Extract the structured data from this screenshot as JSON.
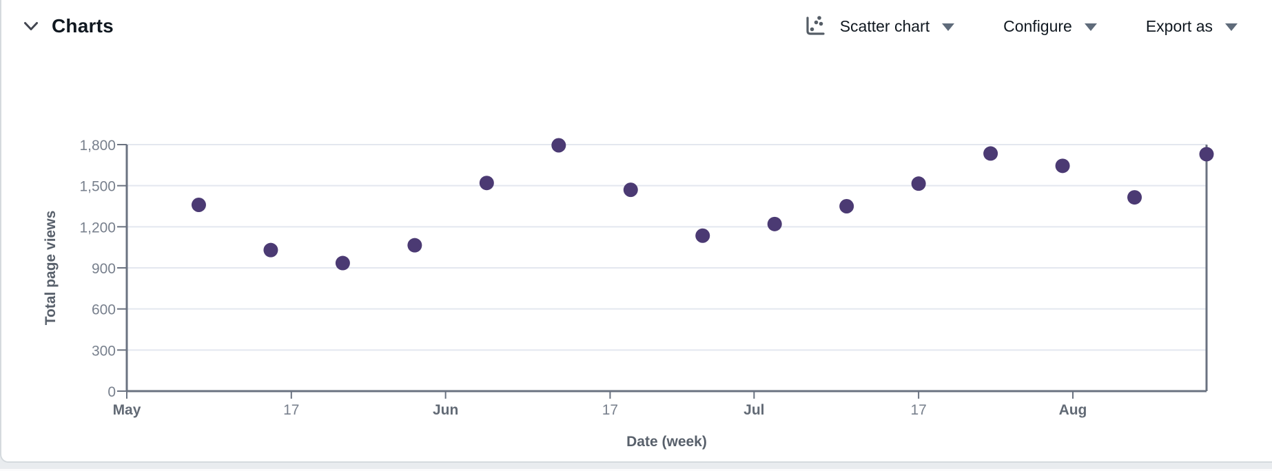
{
  "panel": {
    "title": "Charts"
  },
  "controls": {
    "chart_type": {
      "label": "Scatter chart",
      "icon": "scatter-chart-icon"
    },
    "configure": {
      "label": "Configure"
    },
    "export": {
      "label": "Export as"
    }
  },
  "chart_data": {
    "type": "scatter",
    "title": "",
    "xlabel": "Date (week)",
    "ylabel": "Total page views",
    "x_domain": [
      "May 1",
      "Aug 14"
    ],
    "ylim": [
      0,
      1800
    ],
    "grid": true,
    "legend": "none",
    "y_ticks": [
      {
        "value": 0,
        "label": "0"
      },
      {
        "value": 300,
        "label": "300"
      },
      {
        "value": 600,
        "label": "600"
      },
      {
        "value": 900,
        "label": "900"
      },
      {
        "value": 1200,
        "label": "1,200"
      },
      {
        "value": 1500,
        "label": "1,500"
      },
      {
        "value": 1800,
        "label": "1,800"
      }
    ],
    "x_ticks": [
      {
        "date": "May 1",
        "label": "May",
        "bold": true
      },
      {
        "date": "May 17",
        "label": "17",
        "bold": false
      },
      {
        "date": "Jun 1",
        "label": "Jun",
        "bold": true
      },
      {
        "date": "Jun 17",
        "label": "17",
        "bold": false
      },
      {
        "date": "Jul 1",
        "label": "Jul",
        "bold": true
      },
      {
        "date": "Jul 17",
        "label": "17",
        "bold": false
      },
      {
        "date": "Aug 1",
        "label": "Aug",
        "bold": true
      }
    ],
    "points": [
      {
        "date": "May 8",
        "value": 1360
      },
      {
        "date": "May 15",
        "value": 1030
      },
      {
        "date": "May 22",
        "value": 935
      },
      {
        "date": "May 29",
        "value": 1065
      },
      {
        "date": "Jun 5",
        "value": 1520
      },
      {
        "date": "Jun 12",
        "value": 1795
      },
      {
        "date": "Jun 19",
        "value": 1470
      },
      {
        "date": "Jun 26",
        "value": 1135
      },
      {
        "date": "Jul 3",
        "value": 1220
      },
      {
        "date": "Jul 10",
        "value": 1350
      },
      {
        "date": "Jul 17",
        "value": 1515
      },
      {
        "date": "Jul 24",
        "value": 1735
      },
      {
        "date": "Jul 31",
        "value": 1645
      },
      {
        "date": "Aug 7",
        "value": 1415
      },
      {
        "date": "Aug 14",
        "value": 1730
      }
    ],
    "point_color": "#4b3a73"
  },
  "colors": {
    "grid": "#e3e7ef",
    "axis": "#6a7280",
    "tick_text": "#78808d",
    "month_text": "#626a75",
    "axis_title_text": "#58606b",
    "header_text": "#101820",
    "icon_gray": "#555d66",
    "caret_gray": "#5f6b7a",
    "card_border": "#d5dade",
    "page_bg": "#e9ecef"
  }
}
